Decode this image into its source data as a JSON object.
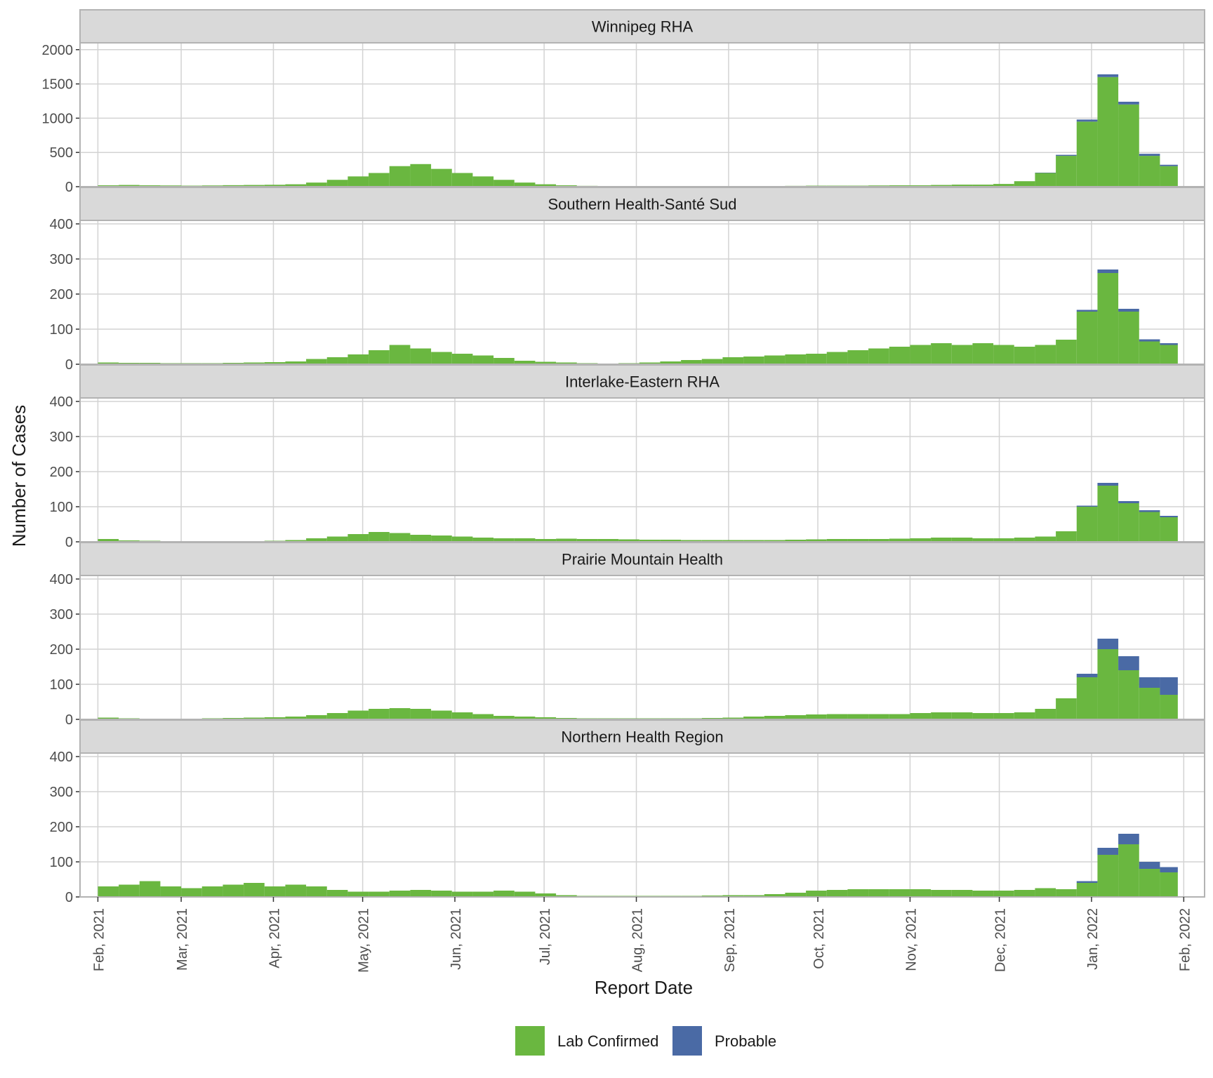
{
  "colors": {
    "lab_confirmed": "#6ab740",
    "probable": "#4a6aa5",
    "strip_bg": "#d9d9d9",
    "grid": "#d3d3d3",
    "panel_border": "#b3b3b3",
    "text": "#1a1a1a",
    "tick_text": "#4d4d4d"
  },
  "chart_data": {
    "type": "bar",
    "stacked": true,
    "facet_layout": "vertical",
    "xlabel": "Report Date",
    "ylabel": "Number of Cases",
    "x_range": [
      "2021-01-26",
      "2022-02-08"
    ],
    "x_ticks": [
      {
        "date": "2021-02-01",
        "label": "Feb, 2021"
      },
      {
        "date": "2021-03-01",
        "label": "Mar, 2021"
      },
      {
        "date": "2021-04-01",
        "label": "Apr, 2021"
      },
      {
        "date": "2021-05-01",
        "label": "May, 2021"
      },
      {
        "date": "2021-06-01",
        "label": "Jun, 2021"
      },
      {
        "date": "2021-07-01",
        "label": "Jul, 2021"
      },
      {
        "date": "2021-08-01",
        "label": "Aug, 2021"
      },
      {
        "date": "2021-09-01",
        "label": "Sep, 2021"
      },
      {
        "date": "2021-10-01",
        "label": "Oct, 2021"
      },
      {
        "date": "2021-11-01",
        "label": "Nov, 2021"
      },
      {
        "date": "2021-12-01",
        "label": "Dec, 2021"
      },
      {
        "date": "2022-01-01",
        "label": "Jan, 2022"
      },
      {
        "date": "2022-02-01",
        "label": "Feb, 2022"
      }
    ],
    "legend": {
      "position": "bottom",
      "items": [
        {
          "label": "Lab Confirmed",
          "color_key": "lab_confirmed"
        },
        {
          "label": "Probable",
          "color_key": "probable"
        }
      ]
    },
    "resolution": "weekly averages of daily cases (daily bars in original)",
    "week_starts": [
      "2021-02-01",
      "2021-02-08",
      "2021-02-15",
      "2021-02-22",
      "2021-03-01",
      "2021-03-08",
      "2021-03-15",
      "2021-03-22",
      "2021-03-29",
      "2021-04-05",
      "2021-04-12",
      "2021-04-19",
      "2021-04-26",
      "2021-05-03",
      "2021-05-10",
      "2021-05-17",
      "2021-05-24",
      "2021-05-31",
      "2021-06-07",
      "2021-06-14",
      "2021-06-21",
      "2021-06-28",
      "2021-07-05",
      "2021-07-12",
      "2021-07-19",
      "2021-07-26",
      "2021-08-02",
      "2021-08-09",
      "2021-08-16",
      "2021-08-23",
      "2021-08-30",
      "2021-09-06",
      "2021-09-13",
      "2021-09-20",
      "2021-09-27",
      "2021-10-04",
      "2021-10-11",
      "2021-10-18",
      "2021-10-25",
      "2021-11-01",
      "2021-11-08",
      "2021-11-15",
      "2021-11-22",
      "2021-11-29",
      "2021-12-06",
      "2021-12-13",
      "2021-12-20",
      "2021-12-27",
      "2022-01-03",
      "2022-01-10",
      "2022-01-17",
      "2022-01-24"
    ],
    "facets": [
      {
        "title": "Winnipeg RHA",
        "ylim": [
          0,
          2100
        ],
        "y_ticks": [
          0,
          500,
          1000,
          1500,
          2000
        ],
        "series": [
          {
            "name": "Lab Confirmed",
            "values": [
              20,
              25,
              20,
              18,
              15,
              18,
              22,
              25,
              28,
              35,
              60,
              100,
              150,
              200,
              300,
              330,
              260,
              200,
              150,
              100,
              60,
              35,
              20,
              12,
              8,
              6,
              5,
              5,
              5,
              6,
              8,
              10,
              10,
              12,
              15,
              15,
              15,
              18,
              20,
              20,
              25,
              30,
              30,
              40,
              80,
              200,
              450,
              950,
              1600,
              1200,
              450,
              300
            ]
          },
          {
            "name": "Probable",
            "values": [
              0,
              0,
              0,
              0,
              0,
              0,
              0,
              0,
              0,
              0,
              0,
              0,
              0,
              0,
              0,
              0,
              0,
              0,
              0,
              0,
              0,
              0,
              0,
              0,
              0,
              0,
              0,
              0,
              0,
              0,
              0,
              0,
              0,
              0,
              0,
              0,
              0,
              0,
              0,
              0,
              0,
              0,
              0,
              0,
              0,
              5,
              15,
              30,
              40,
              40,
              30,
              20
            ]
          }
        ]
      },
      {
        "title": "Southern Health-Santé Sud",
        "ylim": [
          0,
          410
        ],
        "y_ticks": [
          0,
          100,
          200,
          300,
          400
        ],
        "series": [
          {
            "name": "Lab Confirmed",
            "values": [
              5,
              4,
              4,
              3,
              3,
              3,
              4,
              5,
              6,
              8,
              15,
              20,
              28,
              40,
              55,
              45,
              35,
              30,
              25,
              18,
              10,
              7,
              5,
              3,
              2,
              3,
              5,
              8,
              12,
              15,
              20,
              22,
              25,
              28,
              30,
              35,
              40,
              45,
              50,
              55,
              60,
              55,
              60,
              55,
              50,
              55,
              70,
              150,
              260,
              150,
              65,
              55
            ]
          },
          {
            "name": "Probable",
            "values": [
              0,
              0,
              0,
              0,
              0,
              0,
              0,
              0,
              0,
              0,
              0,
              0,
              0,
              0,
              0,
              0,
              0,
              0,
              0,
              0,
              0,
              0,
              0,
              0,
              0,
              0,
              0,
              0,
              0,
              0,
              0,
              0,
              0,
              0,
              0,
              0,
              0,
              0,
              0,
              0,
              0,
              0,
              0,
              0,
              0,
              0,
              0,
              5,
              10,
              8,
              6,
              5
            ]
          }
        ]
      },
      {
        "title": "Interlake-Eastern RHA",
        "ylim": [
          0,
          410
        ],
        "y_ticks": [
          0,
          100,
          200,
          300,
          400
        ],
        "series": [
          {
            "name": "Lab Confirmed",
            "values": [
              8,
              4,
              3,
              2,
              2,
              2,
              2,
              2,
              3,
              5,
              10,
              15,
              22,
              28,
              25,
              20,
              18,
              15,
              12,
              10,
              10,
              8,
              9,
              8,
              8,
              7,
              6,
              6,
              5,
              5,
              5,
              5,
              5,
              6,
              7,
              8,
              8,
              8,
              9,
              10,
              12,
              12,
              10,
              10,
              12,
              15,
              30,
              100,
              160,
              110,
              85,
              70
            ]
          },
          {
            "name": "Probable",
            "values": [
              0,
              0,
              0,
              0,
              0,
              0,
              0,
              0,
              0,
              0,
              0,
              0,
              0,
              0,
              0,
              0,
              0,
              0,
              0,
              0,
              0,
              0,
              0,
              0,
              0,
              0,
              0,
              0,
              0,
              0,
              0,
              0,
              0,
              0,
              0,
              0,
              0,
              0,
              0,
              0,
              0,
              0,
              0,
              0,
              0,
              0,
              0,
              3,
              8,
              6,
              5,
              4
            ]
          }
        ]
      },
      {
        "title": "Prairie Mountain Health",
        "ylim": [
          0,
          410
        ],
        "y_ticks": [
          0,
          100,
          200,
          300,
          400
        ],
        "series": [
          {
            "name": "Lab Confirmed",
            "values": [
              5,
              3,
              2,
              2,
              2,
              3,
              4,
              5,
              6,
              8,
              12,
              18,
              25,
              30,
              32,
              30,
              25,
              20,
              15,
              10,
              8,
              6,
              4,
              3,
              3,
              3,
              3,
              3,
              3,
              4,
              5,
              8,
              10,
              12,
              14,
              15,
              15,
              15,
              15,
              18,
              20,
              20,
              18,
              18,
              20,
              30,
              60,
              120,
              200,
              140,
              90,
              70
            ]
          },
          {
            "name": "Probable",
            "values": [
              0,
              0,
              0,
              0,
              0,
              0,
              0,
              0,
              0,
              0,
              0,
              0,
              0,
              0,
              0,
              0,
              0,
              0,
              0,
              0,
              0,
              0,
              0,
              0,
              0,
              0,
              0,
              0,
              0,
              0,
              0,
              0,
              0,
              0,
              0,
              0,
              0,
              0,
              0,
              0,
              0,
              0,
              0,
              0,
              0,
              0,
              0,
              10,
              30,
              40,
              30,
              50
            ]
          }
        ]
      },
      {
        "title": "Northern Health Region",
        "ylim": [
          0,
          410
        ],
        "y_ticks": [
          0,
          100,
          200,
          300,
          400
        ],
        "series": [
          {
            "name": "Lab Confirmed",
            "values": [
              30,
              35,
              45,
              30,
              25,
              30,
              35,
              40,
              30,
              35,
              30,
              20,
              15,
              15,
              18,
              20,
              18,
              15,
              15,
              18,
              15,
              10,
              5,
              3,
              3,
              3,
              3,
              3,
              3,
              4,
              5,
              5,
              8,
              12,
              18,
              20,
              22,
              22,
              22,
              22,
              20,
              20,
              18,
              18,
              20,
              25,
              22,
              40,
              120,
              150,
              80,
              70
            ]
          },
          {
            "name": "Probable",
            "values": [
              0,
              0,
              0,
              0,
              0,
              0,
              0,
              0,
              0,
              0,
              0,
              0,
              0,
              0,
              0,
              0,
              0,
              0,
              0,
              0,
              0,
              0,
              0,
              0,
              0,
              0,
              0,
              0,
              0,
              0,
              0,
              0,
              0,
              0,
              0,
              0,
              0,
              0,
              0,
              0,
              0,
              0,
              0,
              0,
              0,
              0,
              0,
              5,
              20,
              30,
              20,
              15
            ]
          }
        ]
      }
    ]
  }
}
